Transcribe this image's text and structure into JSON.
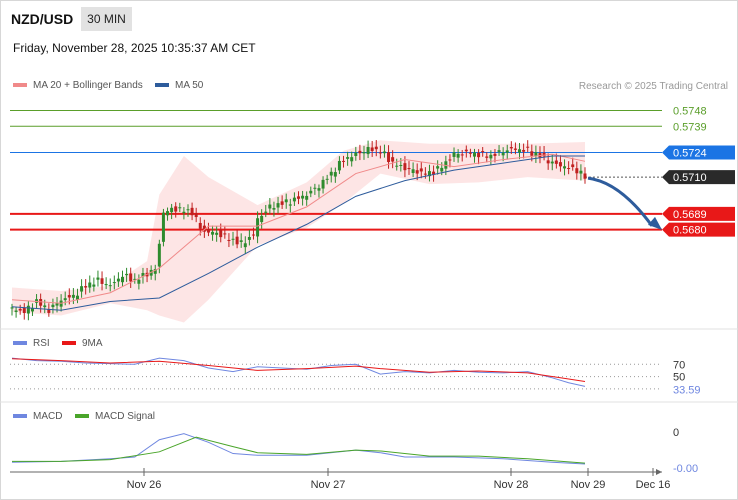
{
  "header": {
    "symbol": "NZD/USD",
    "timeframe": "30 MIN",
    "datetime": "Friday, November 28, 2025 10:35:37 AM CET",
    "credit": "Research © 2025 Trading Central"
  },
  "legends": {
    "price_ma20": "MA 20 + Bollinger Bands",
    "price_ma50": "MA 50",
    "rsi": "RSI",
    "rsi_ma": "9MA",
    "macd": "MACD",
    "macd_signal": "MACD Signal"
  },
  "colors": {
    "ma20": "#f08a8a",
    "ma50": "#2e5c9c",
    "bollinger_fill": "#fde2e2",
    "resistance_green": "#5a9e2a",
    "pivot_blue": "#1b74e4",
    "support_red": "#e81818",
    "current_price_bg": "#2a2a2a",
    "arrow": "#2e5c9c",
    "candle_up": "#2e8b2e",
    "candle_down": "#c02020",
    "rsi_line": "#6f87e0",
    "rsi_ma_line": "#e81818",
    "macd_line": "#6f87e0",
    "macd_signal_line": "#4aa52a"
  },
  "chart_data": [
    {
      "type": "candlestick",
      "series_name": "NZD/USD 30 MIN",
      "x_ticks": [
        "Nov 26",
        "Nov 27",
        "Nov 28",
        "Nov 29",
        "Dec 16"
      ],
      "ylim": [
        0.5625,
        0.5754
      ],
      "levels": [
        {
          "value": 0.5748,
          "label": "0.5748",
          "kind": "resistance"
        },
        {
          "value": 0.5739,
          "label": "0.5739",
          "kind": "resistance"
        },
        {
          "value": 0.5724,
          "label": "0.5724",
          "kind": "pivot"
        },
        {
          "value": 0.571,
          "label": "0.5710",
          "kind": "current"
        },
        {
          "value": 0.5689,
          "label": "0.5689",
          "kind": "support"
        },
        {
          "value": 0.568,
          "label": "0.5680",
          "kind": "support"
        }
      ],
      "close_points": [
        [
          0,
          0.5635
        ],
        [
          6,
          0.5633
        ],
        [
          12,
          0.5639
        ],
        [
          18,
          0.5634
        ],
        [
          24,
          0.564
        ],
        [
          30,
          0.5642
        ],
        [
          36,
          0.5648
        ],
        [
          42,
          0.5651
        ],
        [
          48,
          0.5648
        ],
        [
          54,
          0.5654
        ],
        [
          60,
          0.5651
        ],
        [
          66,
          0.5655
        ],
        [
          71,
          0.5658
        ],
        [
          72,
          0.5672
        ],
        [
          73,
          0.5685
        ],
        [
          74,
          0.569
        ],
        [
          80,
          0.5692
        ],
        [
          88,
          0.569
        ],
        [
          93,
          0.5679
        ],
        [
          100,
          0.5678
        ],
        [
          106,
          0.5675
        ],
        [
          112,
          0.5672
        ],
        [
          118,
          0.5677
        ],
        [
          120,
          0.5686
        ],
        [
          126,
          0.5693
        ],
        [
          132,
          0.5695
        ],
        [
          138,
          0.5697
        ],
        [
          144,
          0.57
        ],
        [
          150,
          0.5705
        ],
        [
          156,
          0.5712
        ],
        [
          162,
          0.572
        ],
        [
          168,
          0.5723
        ],
        [
          174,
          0.5726
        ],
        [
          180,
          0.5725
        ],
        [
          186,
          0.5718
        ],
        [
          192,
          0.5715
        ],
        [
          198,
          0.5713
        ],
        [
          204,
          0.5712
        ],
        [
          210,
          0.5716
        ],
        [
          216,
          0.5723
        ],
        [
          222,
          0.5724
        ],
        [
          228,
          0.5723
        ],
        [
          234,
          0.5722
        ],
        [
          240,
          0.5725
        ],
        [
          246,
          0.5726
        ],
        [
          252,
          0.5725
        ],
        [
          258,
          0.5722
        ],
        [
          264,
          0.5718
        ],
        [
          270,
          0.5716
        ],
        [
          276,
          0.5714
        ],
        [
          280,
          0.571
        ]
      ],
      "ma20_points": [
        [
          0,
          0.564
        ],
        [
          24,
          0.5638
        ],
        [
          48,
          0.5644
        ],
        [
          72,
          0.5658
        ],
        [
          96,
          0.5682
        ],
        [
          120,
          0.5682
        ],
        [
          144,
          0.5693
        ],
        [
          168,
          0.5712
        ],
        [
          192,
          0.572
        ],
        [
          216,
          0.5716
        ],
        [
          240,
          0.572
        ],
        [
          264,
          0.5723
        ],
        [
          280,
          0.5719
        ]
      ],
      "bollinger_upper": [
        [
          0,
          0.5647
        ],
        [
          24,
          0.5645
        ],
        [
          48,
          0.5648
        ],
        [
          66,
          0.5662
        ],
        [
          72,
          0.57
        ],
        [
          84,
          0.5722
        ],
        [
          96,
          0.571
        ],
        [
          120,
          0.5694
        ],
        [
          144,
          0.5707
        ],
        [
          162,
          0.5725
        ],
        [
          180,
          0.5731
        ],
        [
          204,
          0.5729
        ],
        [
          228,
          0.5729
        ],
        [
          252,
          0.5729
        ],
        [
          280,
          0.573
        ]
      ],
      "bollinger_lower": [
        [
          0,
          0.5633
        ],
        [
          24,
          0.5631
        ],
        [
          48,
          0.5638
        ],
        [
          66,
          0.5634
        ],
        [
          72,
          0.5631
        ],
        [
          84,
          0.5627
        ],
        [
          96,
          0.564
        ],
        [
          120,
          0.5671
        ],
        [
          144,
          0.5681
        ],
        [
          162,
          0.5695
        ],
        [
          180,
          0.5712
        ],
        [
          204,
          0.5706
        ],
        [
          228,
          0.5707
        ],
        [
          252,
          0.571
        ],
        [
          280,
          0.5708
        ]
      ],
      "ma50_points": [
        [
          0,
          0.5636
        ],
        [
          24,
          0.5634
        ],
        [
          48,
          0.5639
        ],
        [
          72,
          0.5641
        ],
        [
          96,
          0.5655
        ],
        [
          120,
          0.567
        ],
        [
          144,
          0.5683
        ],
        [
          168,
          0.5699
        ],
        [
          192,
          0.5708
        ],
        [
          216,
          0.5714
        ],
        [
          240,
          0.5718
        ],
        [
          264,
          0.5722
        ],
        [
          280,
          0.5722
        ]
      ],
      "projection": "bearish"
    },
    {
      "type": "line",
      "series_name": "RSI",
      "ticks": [
        "70",
        "50"
      ],
      "current_value": "33.59",
      "ylim": [
        20,
        90
      ],
      "rsi_points": [
        [
          0,
          80
        ],
        [
          12,
          76
        ],
        [
          24,
          75
        ],
        [
          36,
          72
        ],
        [
          48,
          71
        ],
        [
          60,
          70
        ],
        [
          72,
          80
        ],
        [
          84,
          76
        ],
        [
          96,
          64
        ],
        [
          108,
          58
        ],
        [
          120,
          66
        ],
        [
          132,
          64
        ],
        [
          144,
          62
        ],
        [
          156,
          68
        ],
        [
          168,
          70
        ],
        [
          180,
          54
        ],
        [
          192,
          58
        ],
        [
          204,
          56
        ],
        [
          216,
          60
        ],
        [
          228,
          57
        ],
        [
          240,
          56
        ],
        [
          252,
          58
        ],
        [
          264,
          48
        ],
        [
          272,
          40
        ],
        [
          280,
          34
        ]
      ],
      "ma_points": [
        [
          0,
          79
        ],
        [
          24,
          76
        ],
        [
          48,
          72
        ],
        [
          72,
          75
        ],
        [
          96,
          68
        ],
        [
          120,
          60
        ],
        [
          144,
          63
        ],
        [
          168,
          67
        ],
        [
          180,
          63
        ],
        [
          204,
          57
        ],
        [
          228,
          59
        ],
        [
          252,
          56
        ],
        [
          268,
          48
        ],
        [
          280,
          42
        ]
      ]
    },
    {
      "type": "line",
      "series_name": "MACD",
      "ticks": [
        "0",
        "-0.00"
      ],
      "ylim": [
        -0.0012,
        0.004
      ],
      "macd_points": [
        [
          0,
          -0.0003
        ],
        [
          24,
          -0.0002
        ],
        [
          48,
          0.0001
        ],
        [
          60,
          0.0003
        ],
        [
          72,
          0.0023
        ],
        [
          84,
          0.003
        ],
        [
          96,
          0.002
        ],
        [
          108,
          0.0007
        ],
        [
          120,
          0.0005
        ],
        [
          144,
          0.0005
        ],
        [
          168,
          0.0011
        ],
        [
          180,
          0.0008
        ],
        [
          192,
          0.0003
        ],
        [
          216,
          0.0003
        ],
        [
          240,
          0.0001
        ],
        [
          264,
          -0.0003
        ],
        [
          280,
          -0.0005
        ]
      ],
      "signal_points": [
        [
          0,
          -0.0002
        ],
        [
          24,
          -0.0002
        ],
        [
          48,
          0.0
        ],
        [
          72,
          0.0009
        ],
        [
          90,
          0.0026
        ],
        [
          108,
          0.0015
        ],
        [
          120,
          0.0008
        ],
        [
          144,
          0.0006
        ],
        [
          168,
          0.0011
        ],
        [
          180,
          0.001
        ],
        [
          204,
          0.0004
        ],
        [
          228,
          0.0004
        ],
        [
          252,
          0.0001
        ],
        [
          280,
          -0.0004
        ]
      ]
    }
  ]
}
